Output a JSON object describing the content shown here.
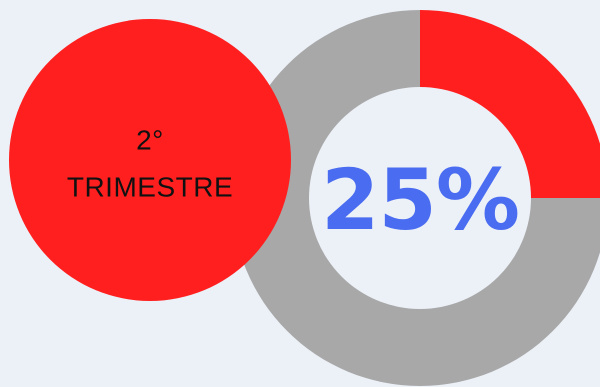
{
  "chart_data": {
    "type": "pie",
    "variant": "donut",
    "center_label": "25%",
    "slices": [
      {
        "value": 25,
        "color": "#ff1f1f"
      },
      {
        "value": 75,
        "color": "#a8a8a8"
      }
    ]
  },
  "badge": {
    "line1": "2°",
    "line2": "TRIMESTRE",
    "color": "#ff1f1f",
    "text_color": "#111111"
  },
  "colors": {
    "background": "#ecf1f8",
    "accent_text": "#4a6cf0",
    "donut_hole": "#ecf1f8"
  }
}
